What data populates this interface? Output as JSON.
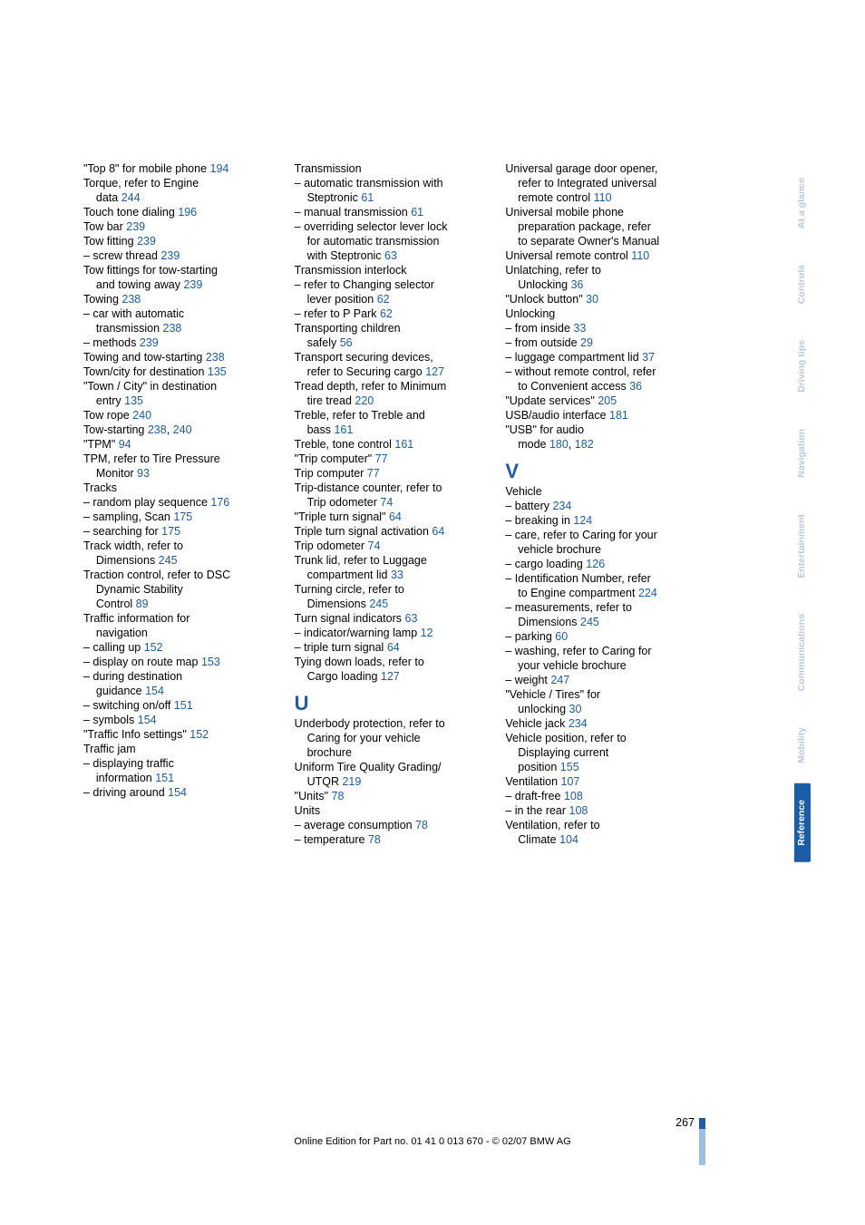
{
  "sidebar": {
    "tabs": [
      {
        "label": "At a glance",
        "active": false
      },
      {
        "label": "Controls",
        "active": false
      },
      {
        "label": "Driving tips",
        "active": false
      },
      {
        "label": "Navigation",
        "active": false
      },
      {
        "label": "Entertainment",
        "active": false
      },
      {
        "label": "Communications",
        "active": false
      },
      {
        "label": "Mobility",
        "active": false
      },
      {
        "label": "Reference",
        "active": true
      }
    ]
  },
  "footer": {
    "page": "267",
    "line": "Online Edition for Part no. 01 41 0 013 670 - © 02/07 BMW AG"
  },
  "columns": [
    {
      "lines": [
        {
          "t": "\"Top 8\" for mobile phone ",
          "n": "194"
        },
        {
          "t": "Torque, refer to Engine"
        },
        {
          "t": "    data ",
          "n": "244"
        },
        {
          "t": "Touch tone dialing ",
          "n": "196"
        },
        {
          "t": "Tow bar ",
          "n": "239"
        },
        {
          "t": "Tow fitting ",
          "n": "239"
        },
        {
          "t": "– screw thread ",
          "n": "239"
        },
        {
          "t": "Tow fittings for tow-starting"
        },
        {
          "t": "    and towing away ",
          "n": "239"
        },
        {
          "t": "Towing ",
          "n": "238"
        },
        {
          "t": "– car with automatic"
        },
        {
          "t": "    transmission ",
          "n": "238"
        },
        {
          "t": "– methods ",
          "n": "239"
        },
        {
          "t": "Towing and tow-starting ",
          "n": "238"
        },
        {
          "t": "Town/city for destination ",
          "n": "135"
        },
        {
          "t": "\"Town / City\" in destination"
        },
        {
          "t": "    entry ",
          "n": "135"
        },
        {
          "t": "Tow rope ",
          "n": "240"
        },
        {
          "t": "Tow-starting ",
          "n": "238, 240",
          "multi": [
            "238",
            "240"
          ]
        },
        {
          "t": "\"TPM\" ",
          "n": "94"
        },
        {
          "t": "TPM, refer to Tire Pressure"
        },
        {
          "t": "    Monitor ",
          "n": "93"
        },
        {
          "t": "Tracks"
        },
        {
          "t": "– random play sequence ",
          "n": "176"
        },
        {
          "t": "– sampling, Scan ",
          "n": "175"
        },
        {
          "t": "– searching for ",
          "n": "175"
        },
        {
          "t": "Track width, refer to"
        },
        {
          "t": "    Dimensions ",
          "n": "245"
        },
        {
          "t": "Traction control, refer to DSC"
        },
        {
          "t": "    Dynamic Stability"
        },
        {
          "t": "    Control ",
          "n": "89"
        },
        {
          "t": "Traffic information for"
        },
        {
          "t": "    navigation"
        },
        {
          "t": "– calling up ",
          "n": "152"
        },
        {
          "t": "– display on route map ",
          "n": "153"
        },
        {
          "t": "– during destination"
        },
        {
          "t": "    guidance ",
          "n": "154"
        },
        {
          "t": "– switching on/off ",
          "n": "151"
        },
        {
          "t": "– symbols ",
          "n": "154"
        },
        {
          "t": "\"Traffic Info settings\" ",
          "n": "152"
        },
        {
          "t": "Traffic jam"
        },
        {
          "t": "– displaying traffic"
        },
        {
          "t": "    information ",
          "n": "151"
        },
        {
          "t": "– driving around ",
          "n": "154"
        }
      ]
    },
    {
      "lines": [
        {
          "t": "Transmission"
        },
        {
          "t": "– automatic transmission with"
        },
        {
          "t": "    Steptronic ",
          "n": "61"
        },
        {
          "t": "– manual transmission ",
          "n": "61"
        },
        {
          "t": "– overriding selector lever lock"
        },
        {
          "t": "    for automatic transmission"
        },
        {
          "t": "    with Steptronic ",
          "n": "63"
        },
        {
          "t": "Transmission interlock"
        },
        {
          "t": "– refer to Changing selector"
        },
        {
          "t": "    lever position ",
          "n": "62"
        },
        {
          "t": "– refer to P Park ",
          "n": "62"
        },
        {
          "t": "Transporting children"
        },
        {
          "t": "    safely ",
          "n": "56"
        },
        {
          "t": "Transport securing devices,"
        },
        {
          "t": "    refer to Securing cargo ",
          "n": "127"
        },
        {
          "t": "Tread depth, refer to Minimum"
        },
        {
          "t": "    tire tread ",
          "n": "220"
        },
        {
          "t": "Treble, refer to Treble and"
        },
        {
          "t": "    bass ",
          "n": "161"
        },
        {
          "t": "Treble, tone control ",
          "n": "161"
        },
        {
          "t": "\"Trip computer\" ",
          "n": "77"
        },
        {
          "t": "Trip computer ",
          "n": "77"
        },
        {
          "t": "Trip-distance counter, refer to"
        },
        {
          "t": "    Trip odometer ",
          "n": "74"
        },
        {
          "t": "\"Triple turn signal\" ",
          "n": "64"
        },
        {
          "t": "Triple turn signal activation ",
          "n": "64"
        },
        {
          "t": "Trip odometer ",
          "n": "74"
        },
        {
          "t": "Trunk lid, refer to Luggage"
        },
        {
          "t": "    compartment lid ",
          "n": "33"
        },
        {
          "t": "Turning circle, refer to"
        },
        {
          "t": "    Dimensions ",
          "n": "245"
        },
        {
          "t": "Turn signal indicators ",
          "n": "63"
        },
        {
          "t": "– indicator/warning lamp ",
          "n": "12"
        },
        {
          "t": "– triple turn signal ",
          "n": "64"
        },
        {
          "t": "Tying down loads, refer to"
        },
        {
          "t": "    Cargo loading ",
          "n": "127"
        },
        {
          "letter": "U"
        },
        {
          "t": "Underbody protection, refer to"
        },
        {
          "t": "    Caring for your vehicle"
        },
        {
          "t": "    brochure"
        },
        {
          "t": "Uniform Tire Quality Grading/"
        },
        {
          "t": "    UTQR ",
          "n": "219"
        },
        {
          "t": "\"Units\" ",
          "n": "78"
        },
        {
          "t": "Units"
        },
        {
          "t": "– average consumption ",
          "n": "78"
        },
        {
          "t": "– temperature ",
          "n": "78"
        }
      ]
    },
    {
      "lines": [
        {
          "t": "Universal garage door opener,"
        },
        {
          "t": "    refer to Integrated universal"
        },
        {
          "t": "    remote control ",
          "n": "110"
        },
        {
          "t": "Universal mobile phone"
        },
        {
          "t": "    preparation package, refer"
        },
        {
          "t": "    to separate Owner's Manual"
        },
        {
          "t": "Universal remote control ",
          "n": "110"
        },
        {
          "t": "Unlatching, refer to"
        },
        {
          "t": "    Unlocking ",
          "n": "36"
        },
        {
          "t": "\"Unlock button\" ",
          "n": "30"
        },
        {
          "t": "Unlocking"
        },
        {
          "t": "– from inside ",
          "n": "33"
        },
        {
          "t": "– from outside ",
          "n": "29"
        },
        {
          "t": "– luggage compartment lid ",
          "n": "37"
        },
        {
          "t": "– without remote control, refer"
        },
        {
          "t": "    to Convenient access ",
          "n": "36"
        },
        {
          "t": "\"Update services\" ",
          "n": "205"
        },
        {
          "t": "USB/audio interface ",
          "n": "181"
        },
        {
          "t": "\"USB\" for audio"
        },
        {
          "t": "    mode ",
          "n": "180, 182",
          "multi": [
            "180",
            "182"
          ]
        },
        {
          "letter": "V"
        },
        {
          "t": "Vehicle"
        },
        {
          "t": "– battery ",
          "n": "234"
        },
        {
          "t": "– breaking in ",
          "n": "124"
        },
        {
          "t": "– care, refer to Caring for your"
        },
        {
          "t": "    vehicle brochure"
        },
        {
          "t": "– cargo loading ",
          "n": "126"
        },
        {
          "t": "– Identification Number, refer"
        },
        {
          "t": "    to Engine compartment ",
          "n": "224"
        },
        {
          "t": "– measurements, refer to"
        },
        {
          "t": "    Dimensions ",
          "n": "245"
        },
        {
          "t": "– parking ",
          "n": "60"
        },
        {
          "t": "– washing, refer to Caring for"
        },
        {
          "t": "    your vehicle brochure"
        },
        {
          "t": "– weight ",
          "n": "247"
        },
        {
          "t": "\"Vehicle / Tires\" for"
        },
        {
          "t": "    unlocking ",
          "n": "30"
        },
        {
          "t": "Vehicle jack ",
          "n": "234"
        },
        {
          "t": "Vehicle position, refer to"
        },
        {
          "t": "    Displaying current"
        },
        {
          "t": "    position ",
          "n": "155"
        },
        {
          "t": "Ventilation ",
          "n": "107"
        },
        {
          "t": "– draft-free ",
          "n": "108"
        },
        {
          "t": "– in the rear ",
          "n": "108"
        },
        {
          "t": "Ventilation, refer to"
        },
        {
          "t": "    Climate ",
          "n": "104"
        }
      ]
    }
  ]
}
